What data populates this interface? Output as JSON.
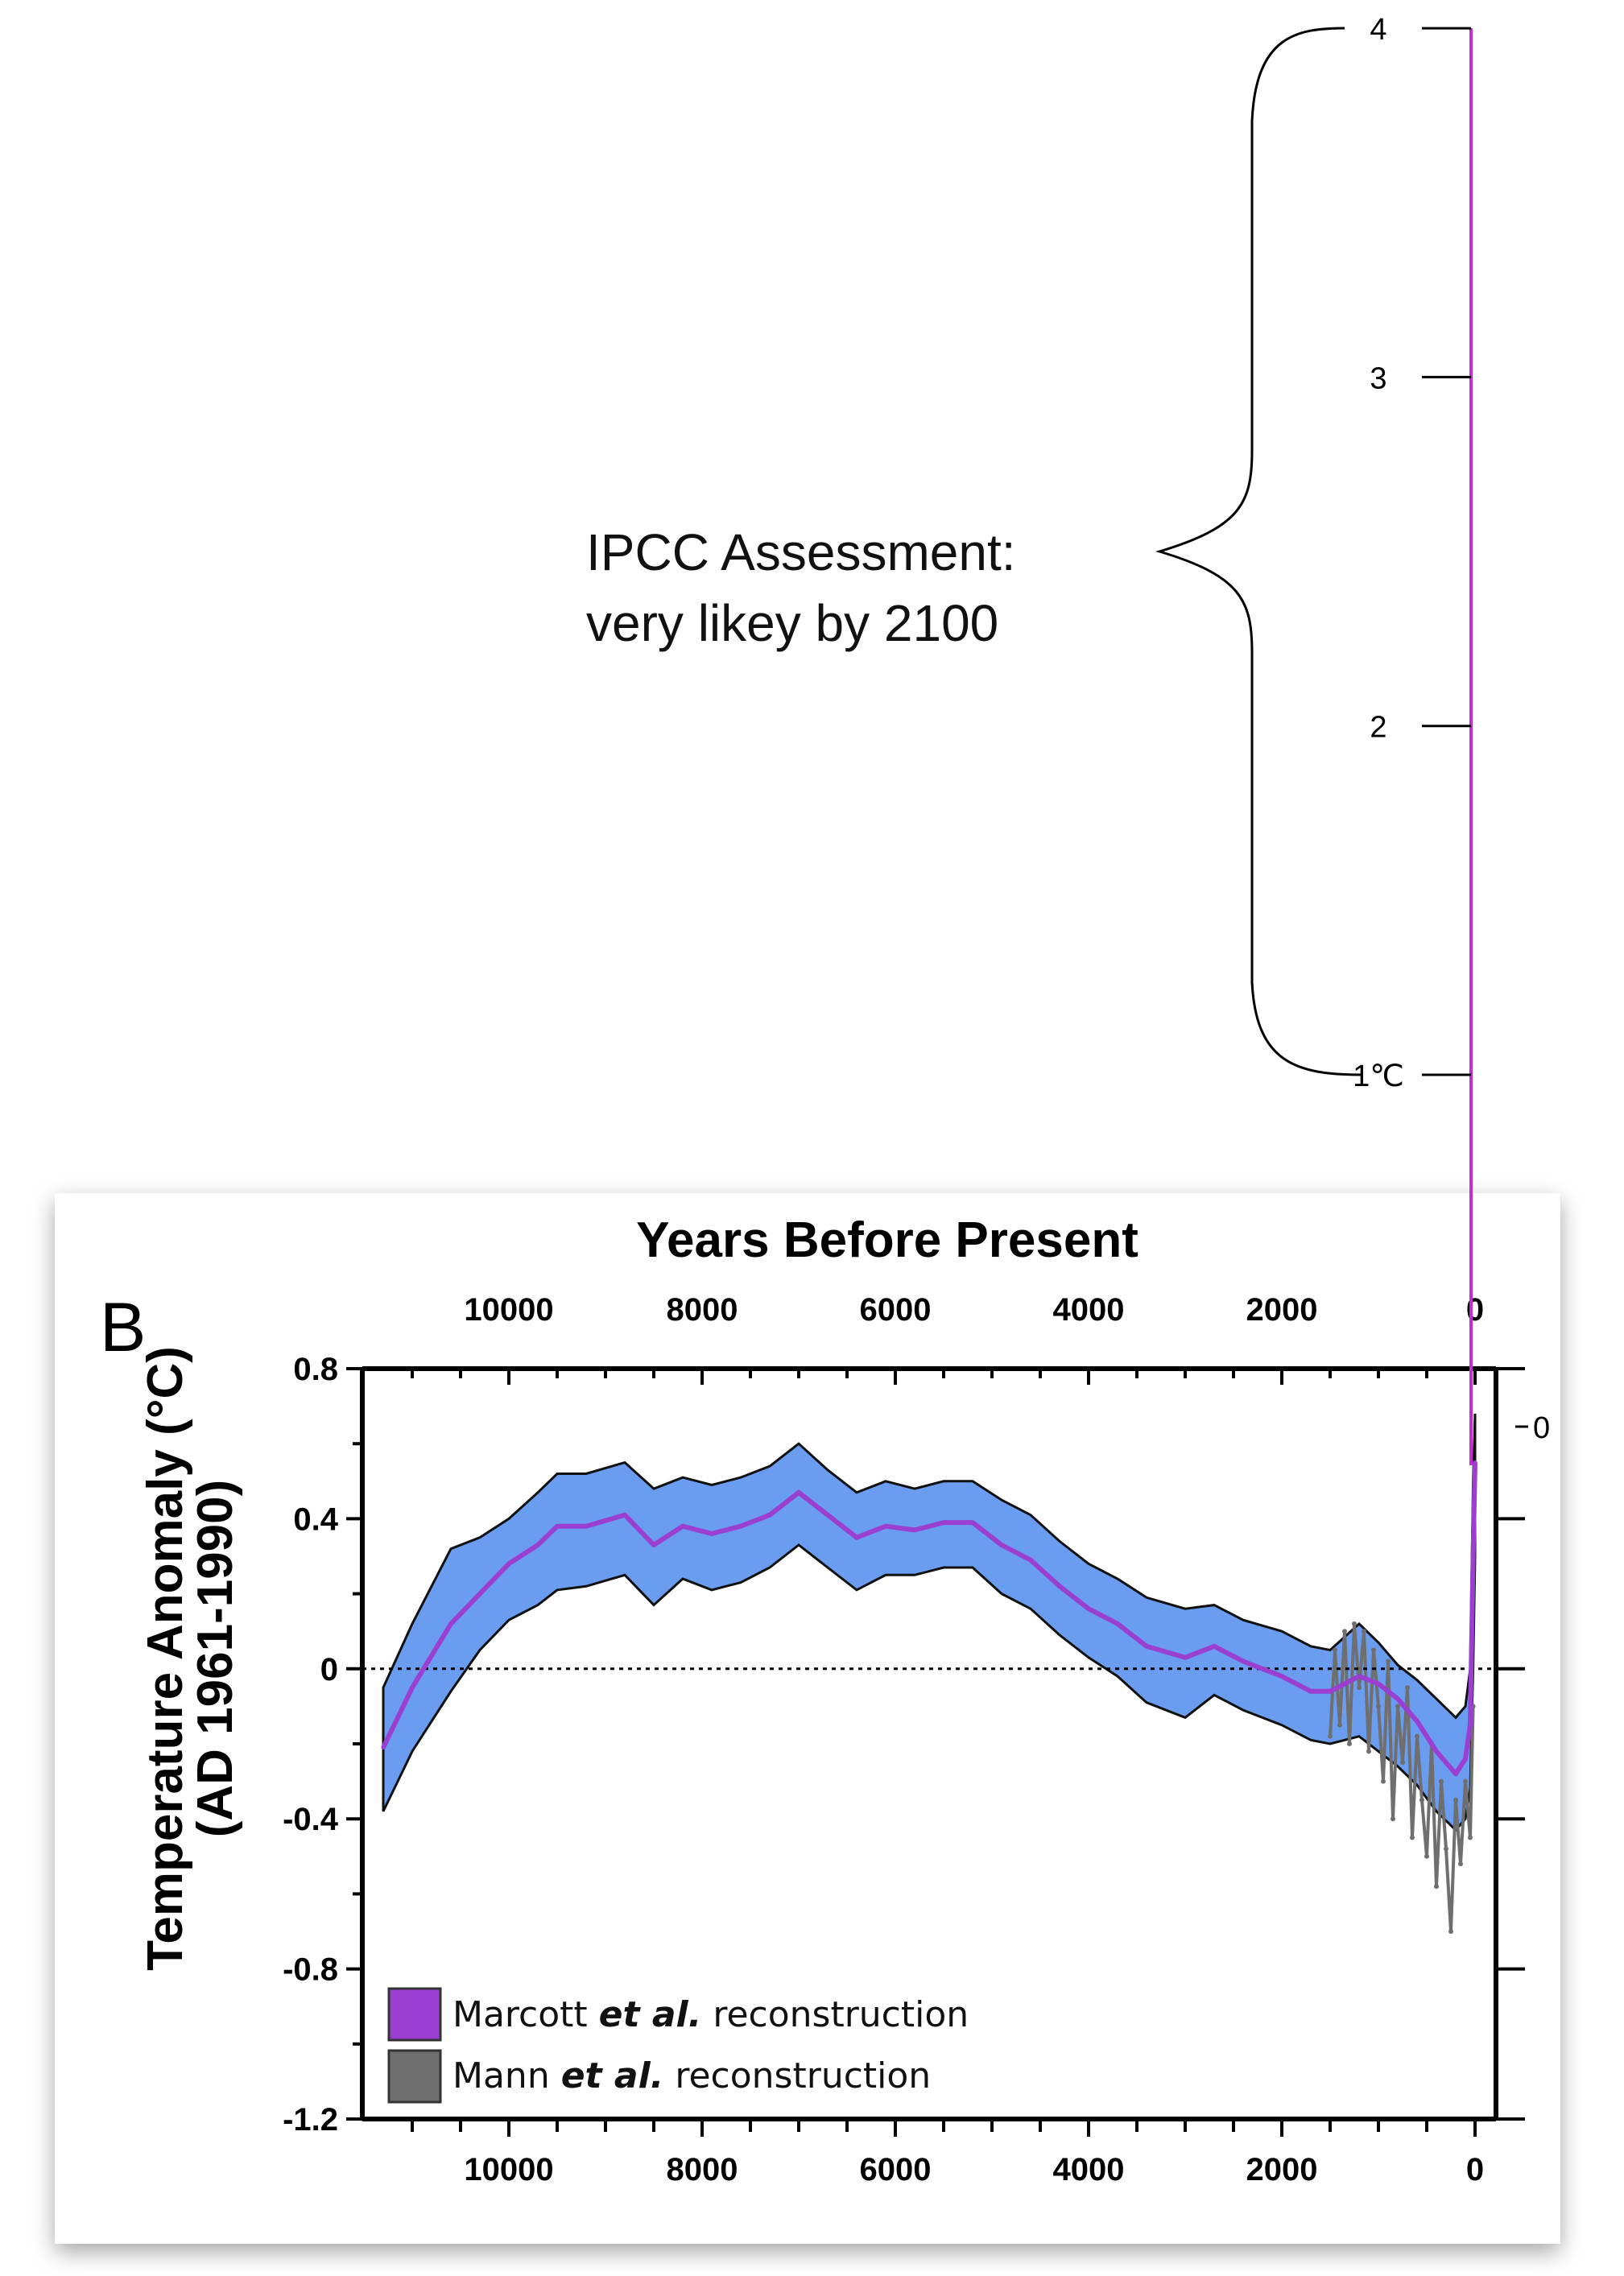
{
  "chart_data": {
    "type": "area",
    "panel_label": "B",
    "title": "Years Before Present",
    "ylabel": "Temperature Anomaly (°C)",
    "ylabel_sub": "(AD 1961-1990)",
    "xlim": [
      11300,
      0
    ],
    "ylim": [
      -1.2,
      0.8
    ],
    "x_ticks": [
      10000,
      8000,
      6000,
      4000,
      2000,
      0
    ],
    "y_ticks": [
      {
        "value": 0.8,
        "label": "0.8"
      },
      {
        "value": 0.4,
        "label": "0.4"
      },
      {
        "value": 0,
        "label": "0"
      },
      {
        "value": -0.4,
        "label": "-0.4"
      },
      {
        "value": -0.8,
        "label": "-0.8"
      },
      {
        "value": -1.2,
        "label": "-1.2"
      }
    ],
    "right_axis_label": "0",
    "reference_line": {
      "y": 0,
      "style": "dotted"
    },
    "series": [
      {
        "name": "Marcott et al. reconstruction",
        "color": "#9b3fd0",
        "band_color": "#6a9cf0",
        "x": [
          11300,
          11000,
          10600,
          10300,
          10000,
          9700,
          9500,
          9200,
          8800,
          8500,
          8200,
          7900,
          7600,
          7300,
          7000,
          6700,
          6400,
          6100,
          5800,
          5500,
          5200,
          4900,
          4600,
          4300,
          4000,
          3700,
          3400,
          3000,
          2700,
          2400,
          2000,
          1700,
          1500,
          1200,
          1000,
          800,
          600,
          400,
          200,
          100,
          50,
          20,
          0
        ],
        "values": [
          -0.21,
          -0.05,
          0.12,
          0.2,
          0.28,
          0.33,
          0.38,
          0.38,
          0.41,
          0.33,
          0.38,
          0.36,
          0.38,
          0.41,
          0.47,
          0.41,
          0.35,
          0.38,
          0.37,
          0.39,
          0.39,
          0.33,
          0.29,
          0.22,
          0.16,
          0.12,
          0.06,
          0.03,
          0.06,
          0.02,
          -0.02,
          -0.06,
          -0.06,
          -0.02,
          -0.04,
          -0.08,
          -0.14,
          -0.22,
          -0.28,
          -0.24,
          -0.15,
          0.3,
          0.55
        ],
        "upper": [
          -0.05,
          0.12,
          0.32,
          0.35,
          0.4,
          0.47,
          0.52,
          0.52,
          0.55,
          0.48,
          0.51,
          0.49,
          0.51,
          0.54,
          0.6,
          0.53,
          0.47,
          0.5,
          0.48,
          0.5,
          0.5,
          0.45,
          0.41,
          0.34,
          0.28,
          0.24,
          0.19,
          0.16,
          0.17,
          0.13,
          0.1,
          0.06,
          0.05,
          0.12,
          0.07,
          0.01,
          -0.03,
          -0.08,
          -0.13,
          -0.1,
          0.0,
          0.5,
          0.68
        ],
        "lower": [
          -0.38,
          -0.22,
          -0.06,
          0.05,
          0.13,
          0.17,
          0.21,
          0.22,
          0.25,
          0.17,
          0.24,
          0.21,
          0.23,
          0.27,
          0.33,
          0.27,
          0.21,
          0.25,
          0.25,
          0.27,
          0.27,
          0.2,
          0.16,
          0.09,
          0.03,
          -0.02,
          -0.09,
          -0.13,
          -0.07,
          -0.11,
          -0.15,
          -0.19,
          -0.2,
          -0.18,
          -0.22,
          -0.26,
          -0.31,
          -0.38,
          -0.43,
          -0.4,
          -0.32,
          0.0,
          0.3
        ]
      },
      {
        "name": "Mann et al. reconstruction",
        "color": "#6f6f6f",
        "x": [
          1500,
          1450,
          1400,
          1350,
          1300,
          1250,
          1200,
          1150,
          1100,
          1050,
          1000,
          950,
          900,
          850,
          800,
          750,
          700,
          650,
          600,
          550,
          500,
          450,
          400,
          350,
          300,
          250,
          200,
          150,
          100,
          50,
          20
        ],
        "values": [
          -0.18,
          0.05,
          -0.15,
          0.1,
          -0.2,
          0.12,
          -0.05,
          0.1,
          -0.22,
          0.05,
          -0.1,
          -0.3,
          0.02,
          -0.4,
          -0.1,
          -0.25,
          -0.05,
          -0.45,
          -0.18,
          -0.35,
          -0.5,
          -0.2,
          -0.58,
          -0.3,
          -0.48,
          -0.7,
          -0.35,
          -0.52,
          -0.3,
          -0.45,
          -0.1
        ]
      }
    ],
    "legend": [
      {
        "pre": "Marcott ",
        "em": "et al.",
        "post": " reconstruction",
        "swatch": "#9b3fd0"
      },
      {
        "pre": "Mann ",
        "em": "et al.",
        "post": " reconstruction",
        "swatch": "#6f6f6f"
      }
    ],
    "projection": {
      "line_color": "#c22fcf",
      "scale_ticks": [
        {
          "value": 4,
          "label": "4"
        },
        {
          "value": 3,
          "label": "3"
        },
        {
          "value": 2,
          "label": "2"
        },
        {
          "value": 1,
          "label": "1℃"
        }
      ],
      "annotation": [
        "IPCC Assessment:",
        "very likey by 2100"
      ]
    }
  }
}
